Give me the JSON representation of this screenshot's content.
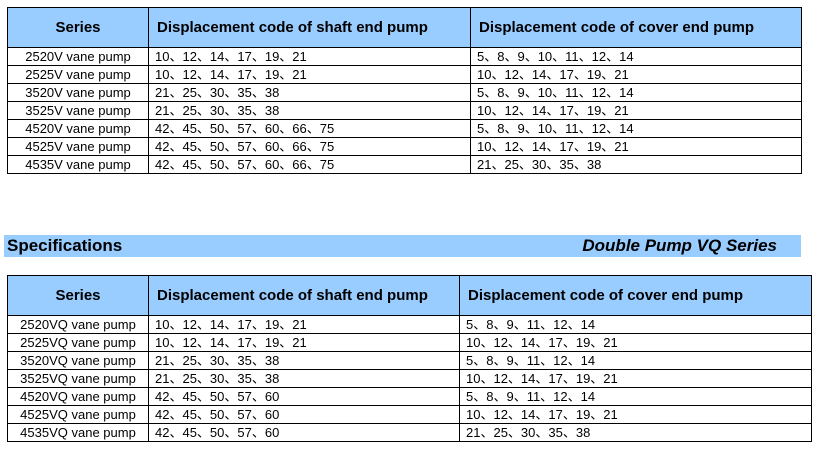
{
  "table1": {
    "headers": [
      "Series",
      "Displacement code of shaft end pump",
      "Displacement code of cover end pump"
    ],
    "rows": [
      [
        "2520V vane pump",
        "10、12、14、17、19、21",
        "5、8、9、10、11、12、14"
      ],
      [
        "2525V vane pump",
        "10、12、14、17、19、21",
        "10、12、14、17、19、21"
      ],
      [
        "3520V vane pump",
        "21、25、30、35、38",
        "5、8、9、10、11、12、14"
      ],
      [
        "3525V vane pump",
        "21、25、30、35、38",
        "10、12、14、17、19、21"
      ],
      [
        "4520V vane pump",
        "42、45、50、57、60、66、75",
        "5、8、9、10、11、12、14"
      ],
      [
        "4525V vane pump",
        "42、45、50、57、60、66、75",
        "10、12、14、17、19、21"
      ],
      [
        "4535V vane pump",
        "42、45、50、57、60、66、75",
        "21、25、30、35、38"
      ]
    ]
  },
  "section": {
    "title": "Specifications",
    "subtitle": "Double  Pump VQ Series"
  },
  "table2": {
    "headers": [
      "Series",
      "Displacement code of shaft end pump",
      "Displacement code of cover end pump"
    ],
    "rows": [
      [
        "2520VQ vane pump",
        "10、12、14、17、19、21",
        "5、8、9、11、12、14"
      ],
      [
        "2525VQ vane pump",
        "10、12、14、17、19、21",
        "10、12、14、17、19、21"
      ],
      [
        "3520VQ vane pump",
        "21、25、30、35、38",
        "5、8、9、11、12、14"
      ],
      [
        "3525VQ vane pump",
        "21、25、30、35、38",
        "10、12、14、17、19、21"
      ],
      [
        "4520VQ vane pump",
        "42、45、50、57、60",
        "5、8、9、11、12、14"
      ],
      [
        "4525VQ vane pump",
        "42、45、50、57、60",
        "10、12、14、17、19、21"
      ],
      [
        "4535VQ vane pump",
        "42、45、50、57、60",
        "21、25、30、35、38"
      ]
    ]
  },
  "colors": {
    "header_bg": "#99ccff"
  }
}
